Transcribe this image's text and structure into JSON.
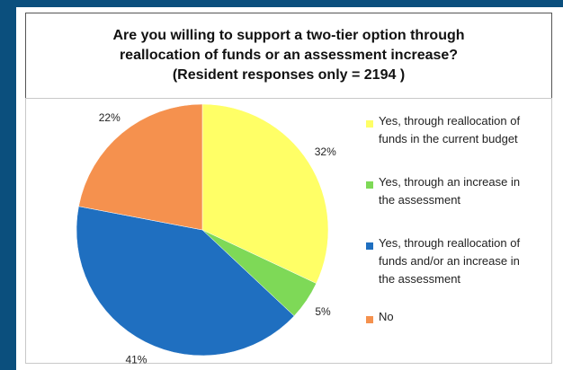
{
  "title": {
    "line1": "Are you willing to support a two-tier option through",
    "line2": "reallocation of funds or an assessment increase?",
    "line3": "(Resident responses only = 2194 )"
  },
  "chart_data": {
    "type": "pie",
    "title": "Are you willing to support a two-tier option through reallocation of funds or an assessment increase? (Resident responses only = 2194 )",
    "slices": [
      {
        "name": "Yes, through reallocation of funds in the current budget",
        "value": 32,
        "label": "32%",
        "color": "#ffff66"
      },
      {
        "name": "Yes, through an increase in the assessment",
        "value": 5,
        "label": "5%",
        "color": "#7ed957"
      },
      {
        "name": "Yes, through reallocation of funds and/or an increase in the assessment",
        "value": 41,
        "label": "41%",
        "color": "#1f6fc0"
      },
      {
        "name": "No",
        "value": 22,
        "label": "22%",
        "color": "#f5914e"
      }
    ],
    "legend": "right"
  },
  "legend": [
    {
      "line1": "Yes, through reallocation of",
      "line2": "funds in the current budget",
      "line3": ""
    },
    {
      "line1": "Yes, through an increase in",
      "line2": "the assessment",
      "line3": ""
    },
    {
      "line1": "Yes, through reallocation of",
      "line2": "funds and/or an increase in",
      "line3": "the assessment"
    },
    {
      "line1": "No",
      "line2": "",
      "line3": ""
    }
  ]
}
